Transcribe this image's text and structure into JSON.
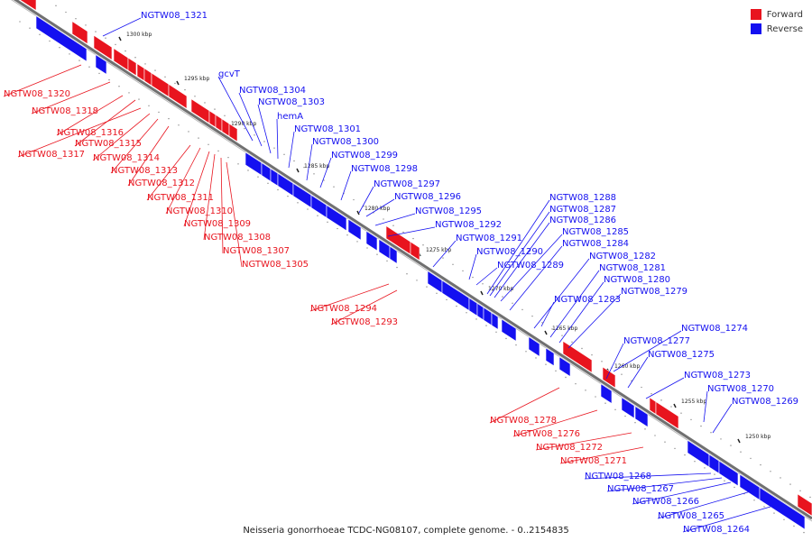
{
  "colors": {
    "forward": "#e8141e",
    "reverse": "#1410f0",
    "axis": "#707070"
  },
  "legend": [
    {
      "label": "Forward",
      "color": "#e8141e"
    },
    {
      "label": "Reverse",
      "color": "#1410f0"
    }
  ],
  "caption": "Neisseria gonorrhoeae TCDC-NG08107, complete genome. - 0..2154835",
  "ticks": [
    "1300 kbp",
    "1295 kbp",
    "1290 kbp",
    "1285 kbp",
    "1280 kbp",
    "1275 kbp",
    "1270 kbp",
    "1265 kbp",
    "1260 kbp",
    "1255 kbp",
    "1250 kbp"
  ],
  "forward_labels": [
    "NGTW08_1320",
    "NGTW08_1318",
    "NGTW08_1316",
    "NGTW08_1315",
    "NGTW08_1317",
    "NGTW08_1314",
    "NGTW08_1313",
    "NGTW08_1312",
    "NGTW08_1311",
    "NGTW08_1310",
    "NGTW08_1309",
    "NGTW08_1308",
    "NGTW08_1307",
    "NGTW08_1305",
    "NGTW08_1294",
    "NGTW08_1293",
    "NGTW08_1278",
    "NGTW08_1276",
    "NGTW08_1272",
    "NGTW08_1271"
  ],
  "reverse_labels": [
    "NGTW08_1321",
    "gcvT",
    "NGTW08_1304",
    "NGTW08_1303",
    "hemA",
    "NGTW08_1301",
    "NGTW08_1300",
    "NGTW08_1299",
    "NGTW08_1298",
    "NGTW08_1297",
    "NGTW08_1296",
    "NGTW08_1295",
    "NGTW08_1292",
    "NGTW08_1291",
    "NGTW08_1290",
    "NGTW08_1289",
    "NGTW08_1288",
    "NGTW08_1287",
    "NGTW08_1286",
    "NGTW08_1285",
    "NGTW08_1284",
    "NGTW08_1282",
    "NGTW08_1281",
    "NGTW08_1280",
    "NGTW08_1279",
    "NGTW08_1283",
    "NGTW08_1274",
    "NGTW08_1277",
    "NGTW08_1275",
    "NGTW08_1273",
    "NGTW08_1270",
    "NGTW08_1269",
    "NGTW08_1268",
    "NGTW08_1267",
    "NGTW08_1266",
    "NGTW08_1265",
    "NGTW08_1264"
  ]
}
